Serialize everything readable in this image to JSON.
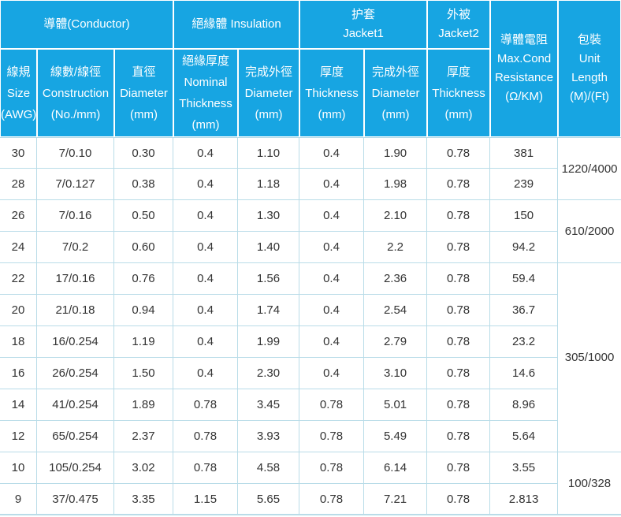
{
  "colors": {
    "header_bg": "#17a5e2",
    "header_text": "#ffffff",
    "grid_line": "#b9dce8",
    "cell_text": "#333333"
  },
  "table": {
    "group_headers": [
      {
        "label": "導體(Conductor)"
      },
      {
        "label": "絕緣體 Insulation"
      },
      {
        "label": "护套\nJacket1"
      },
      {
        "label": "外被\nJacket2"
      }
    ],
    "span_headers": [
      {
        "label": "導體電阻\nMax.Cond\nResistance\n(Ω/KM)"
      },
      {
        "label": "包裝\nUnit\nLength\n(M)/(Ft)"
      }
    ],
    "sub_headers": [
      {
        "label": "線規\nSize\n(AWG)"
      },
      {
        "label": "線數/線徑\nConstruction\n(No./mm)"
      },
      {
        "label": "直徑\nDiameter\n(mm)"
      },
      {
        "label": "絕緣厚度\nNominal\nThickness\n(mm)"
      },
      {
        "label": "完成外徑\nDiameter\n(mm)"
      },
      {
        "label": "厚度\nThickness\n(mm)"
      },
      {
        "label": "完成外徑\nDiameter\n(mm)"
      },
      {
        "label": "厚度\nThickness\n(mm)"
      }
    ],
    "rows": [
      {
        "cells": [
          "30",
          "7/0.10",
          "0.30",
          "0.4",
          "1.10",
          "0.4",
          "1.90",
          "0.78",
          "381"
        ],
        "packaging": {
          "label": "1220/4000",
          "rowspan": 2
        }
      },
      {
        "cells": [
          "28",
          "7/0.127",
          "0.38",
          "0.4",
          "1.18",
          "0.4",
          "1.98",
          "0.78",
          "239"
        ]
      },
      {
        "cells": [
          "26",
          "7/0.16",
          "0.50",
          "0.4",
          "1.30",
          "0.4",
          "2.10",
          "0.78",
          "150"
        ],
        "packaging": {
          "label": "610/2000",
          "rowspan": 2
        }
      },
      {
        "cells": [
          "24",
          "7/0.2",
          "0.60",
          "0.4",
          "1.40",
          "0.4",
          "2.2",
          "0.78",
          "94.2"
        ]
      },
      {
        "cells": [
          "22",
          "17/0.16",
          "0.76",
          "0.4",
          "1.56",
          "0.4",
          "2.36",
          "0.78",
          "59.4"
        ],
        "packaging": {
          "label": "305/1000",
          "rowspan": 6
        }
      },
      {
        "cells": [
          "20",
          "21/0.18",
          "0.94",
          "0.4",
          "1.74",
          "0.4",
          "2.54",
          "0.78",
          "36.7"
        ]
      },
      {
        "cells": [
          "18",
          "16/0.254",
          "1.19",
          "0.4",
          "1.99",
          "0.4",
          "2.79",
          "0.78",
          "23.2"
        ]
      },
      {
        "cells": [
          "16",
          "26/0.254",
          "1.50",
          "0.4",
          "2.30",
          "0.4",
          "3.10",
          "0.78",
          "14.6"
        ]
      },
      {
        "cells": [
          "14",
          "41/0.254",
          "1.89",
          "0.78",
          "3.45",
          "0.78",
          "5.01",
          "0.78",
          "8.96"
        ]
      },
      {
        "cells": [
          "12",
          "65/0.254",
          "2.37",
          "0.78",
          "3.93",
          "0.78",
          "5.49",
          "0.78",
          "5.64"
        ]
      },
      {
        "cells": [
          "10",
          "105/0.254",
          "3.02",
          "0.78",
          "4.58",
          "0.78",
          "6.14",
          "0.78",
          "3.55"
        ],
        "packaging": {
          "label": "100/328",
          "rowspan": 2
        }
      },
      {
        "cells": [
          "9",
          "37/0.475",
          "3.35",
          "1.15",
          "5.65",
          "0.78",
          "7.21",
          "0.78",
          "2.813"
        ]
      }
    ]
  }
}
